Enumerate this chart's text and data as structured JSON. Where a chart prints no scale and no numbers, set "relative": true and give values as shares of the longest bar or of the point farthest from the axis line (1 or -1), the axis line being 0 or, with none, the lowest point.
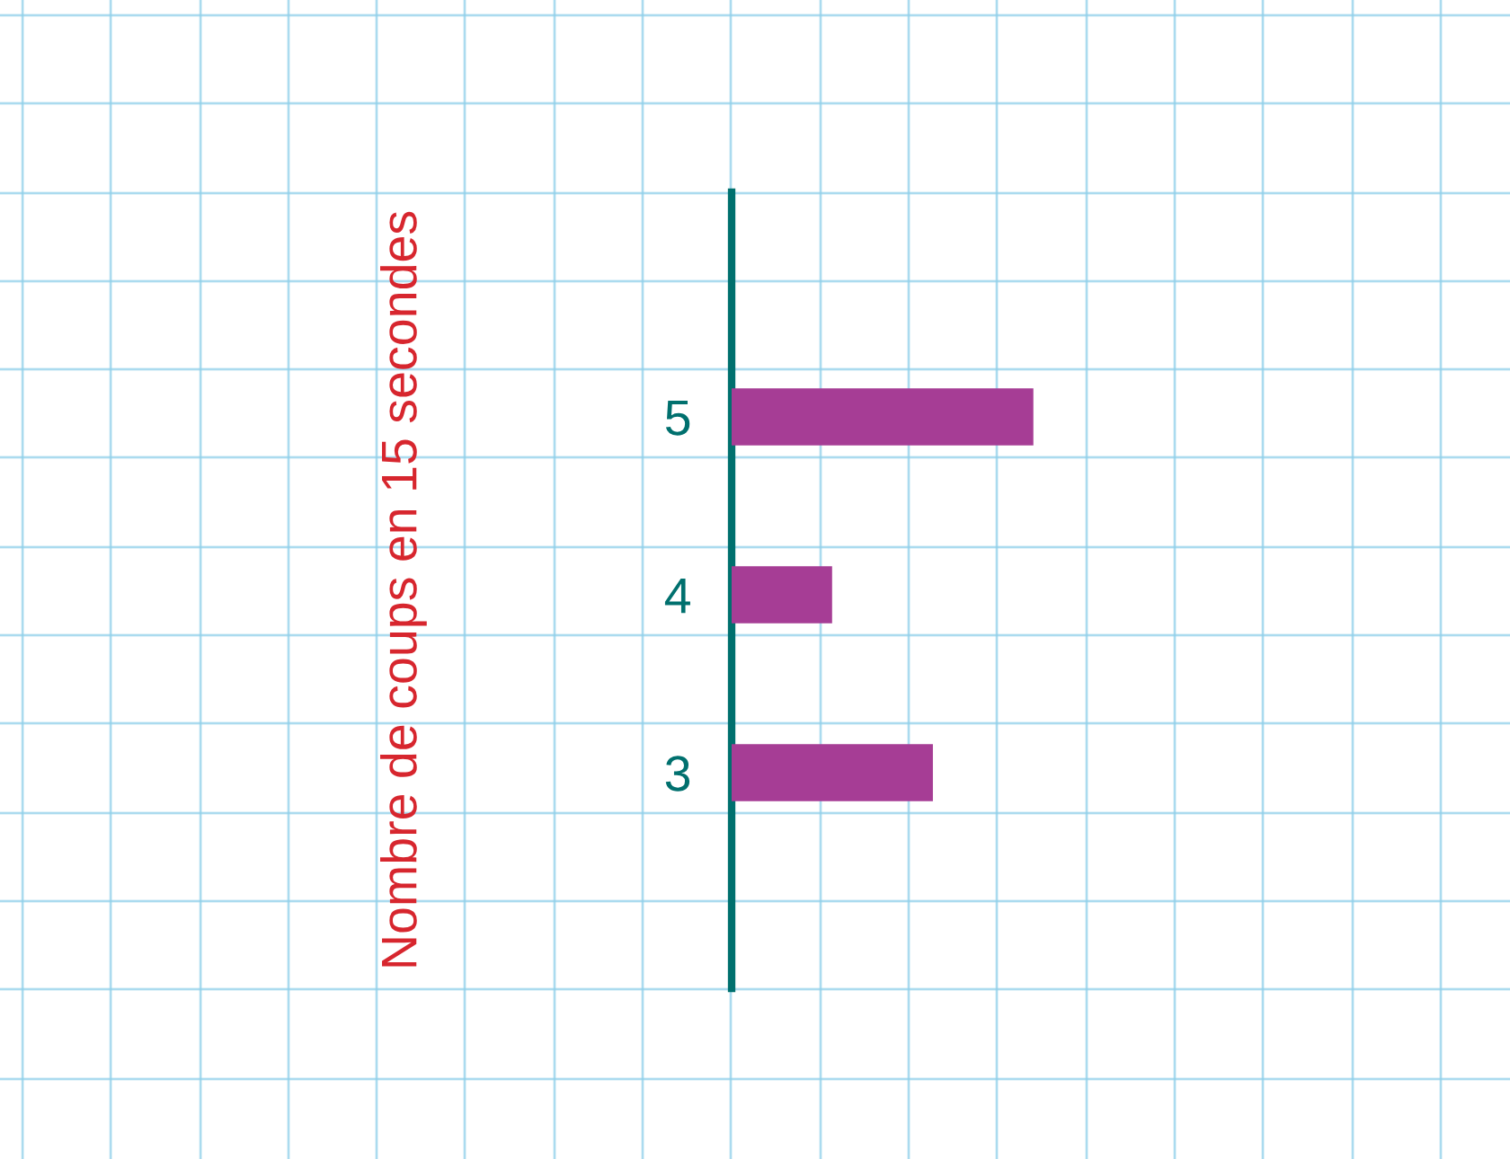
{
  "chart_data": {
    "type": "bar",
    "orientation": "horizontal",
    "relative": true,
    "ylabel": "Nombre de coups en 15 secondes",
    "categories": [
      "5",
      "4",
      "3"
    ],
    "series": [
      {
        "color": "#a63d95",
        "values": [
          1,
          0.333,
          0.667
        ]
      }
    ],
    "grid": false
  }
}
